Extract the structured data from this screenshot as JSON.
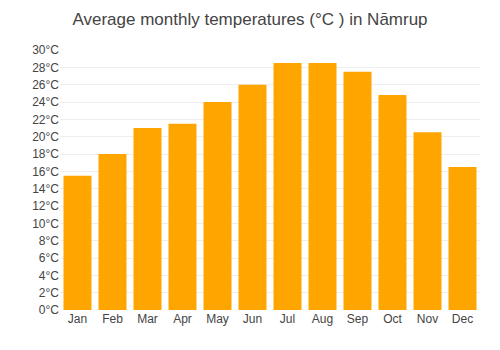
{
  "chart_data": {
    "type": "bar",
    "title": "Average monthly temperatures (°C ) in Nāmrup",
    "categories": [
      "Jan",
      "Feb",
      "Mar",
      "Apr",
      "May",
      "Jun",
      "Jul",
      "Aug",
      "Sep",
      "Oct",
      "Nov",
      "Dec"
    ],
    "values": [
      15.5,
      18.0,
      21.0,
      21.5,
      24.0,
      26.0,
      28.5,
      28.5,
      27.5,
      24.8,
      20.5,
      16.5
    ],
    "color": "#FFA500",
    "ylim": [
      0,
      30
    ],
    "yticks": [
      {
        "value": 0,
        "label": "0°C"
      },
      {
        "value": 2,
        "label": "2°C"
      },
      {
        "value": 4,
        "label": "4°C"
      },
      {
        "value": 6,
        "label": "6°C"
      },
      {
        "value": 8,
        "label": "8°C"
      },
      {
        "value": 10,
        "label": "10°C"
      },
      {
        "value": 12,
        "label": "12°C"
      },
      {
        "value": 14,
        "label": "14°C"
      },
      {
        "value": 16,
        "label": "16°C"
      },
      {
        "value": 18,
        "label": "18°C"
      },
      {
        "value": 20,
        "label": "20°C"
      },
      {
        "value": 22,
        "label": "22°C"
      },
      {
        "value": 24,
        "label": "24°C"
      },
      {
        "value": 26,
        "label": "26°C"
      },
      {
        "value": 28,
        "label": "28°C"
      },
      {
        "value": 30,
        "label": "30°C"
      }
    ],
    "grid": true
  }
}
